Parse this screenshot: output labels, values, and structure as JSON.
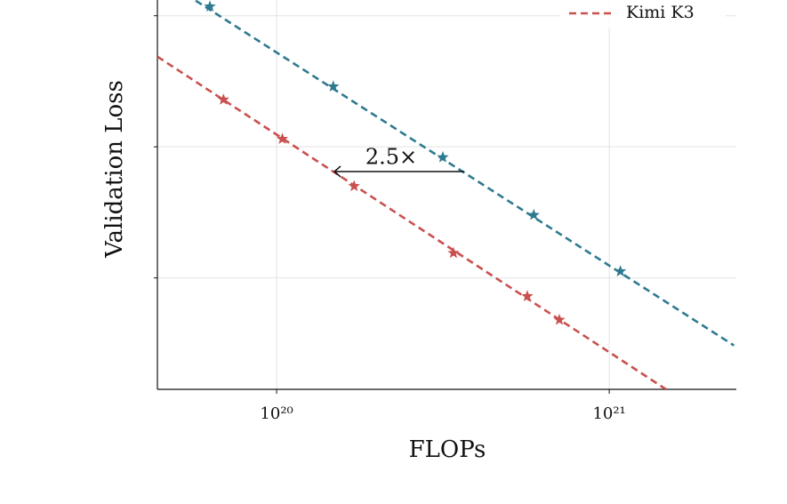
{
  "chart_data": {
    "type": "scatter",
    "x_label": "FLOPs",
    "y_label": "Validation Loss",
    "xscale": "log",
    "xlim": [
      4.38e+19,
      2.41e+21
    ],
    "xticks": [
      {
        "value": 1e+20,
        "label": "10²⁰"
      },
      {
        "value": 1e+21,
        "label": "10²¹"
      }
    ],
    "ylim": [
      2.015,
      2.312
    ],
    "ygrid": [
      2.1,
      2.2,
      2.3
    ],
    "grid": true,
    "legend": "upper right",
    "series": [
      {
        "color": "#2e7a8f",
        "x": [
          6.3e+19,
          1.48e+20,
          3.16e+20,
          5.93e+20,
          1.08e+21
        ],
        "values": [
          2.307,
          2.246,
          2.192,
          2.148,
          2.105
        ],
        "fit": {
          "x": [
            5.71e+19,
            2.37e+21
          ],
          "values": [
            2.3115,
            2.0485
          ]
        }
      },
      {
        "name": "Kimi K3",
        "color": "#c9504f",
        "x": [
          6.92e+19,
          1.04e+20,
          1.71e+20,
          3.4e+20,
          5.67e+20,
          7.08e+20
        ],
        "values": [
          2.236,
          2.206,
          2.17,
          2.119,
          2.086,
          2.068
        ],
        "fit": {
          "x": [
            4.38e+19,
            1.49e+21
          ],
          "values": [
            2.2688,
            2.0146
          ]
        }
      }
    ],
    "annotation": {
      "text": "2.5×"
    }
  }
}
